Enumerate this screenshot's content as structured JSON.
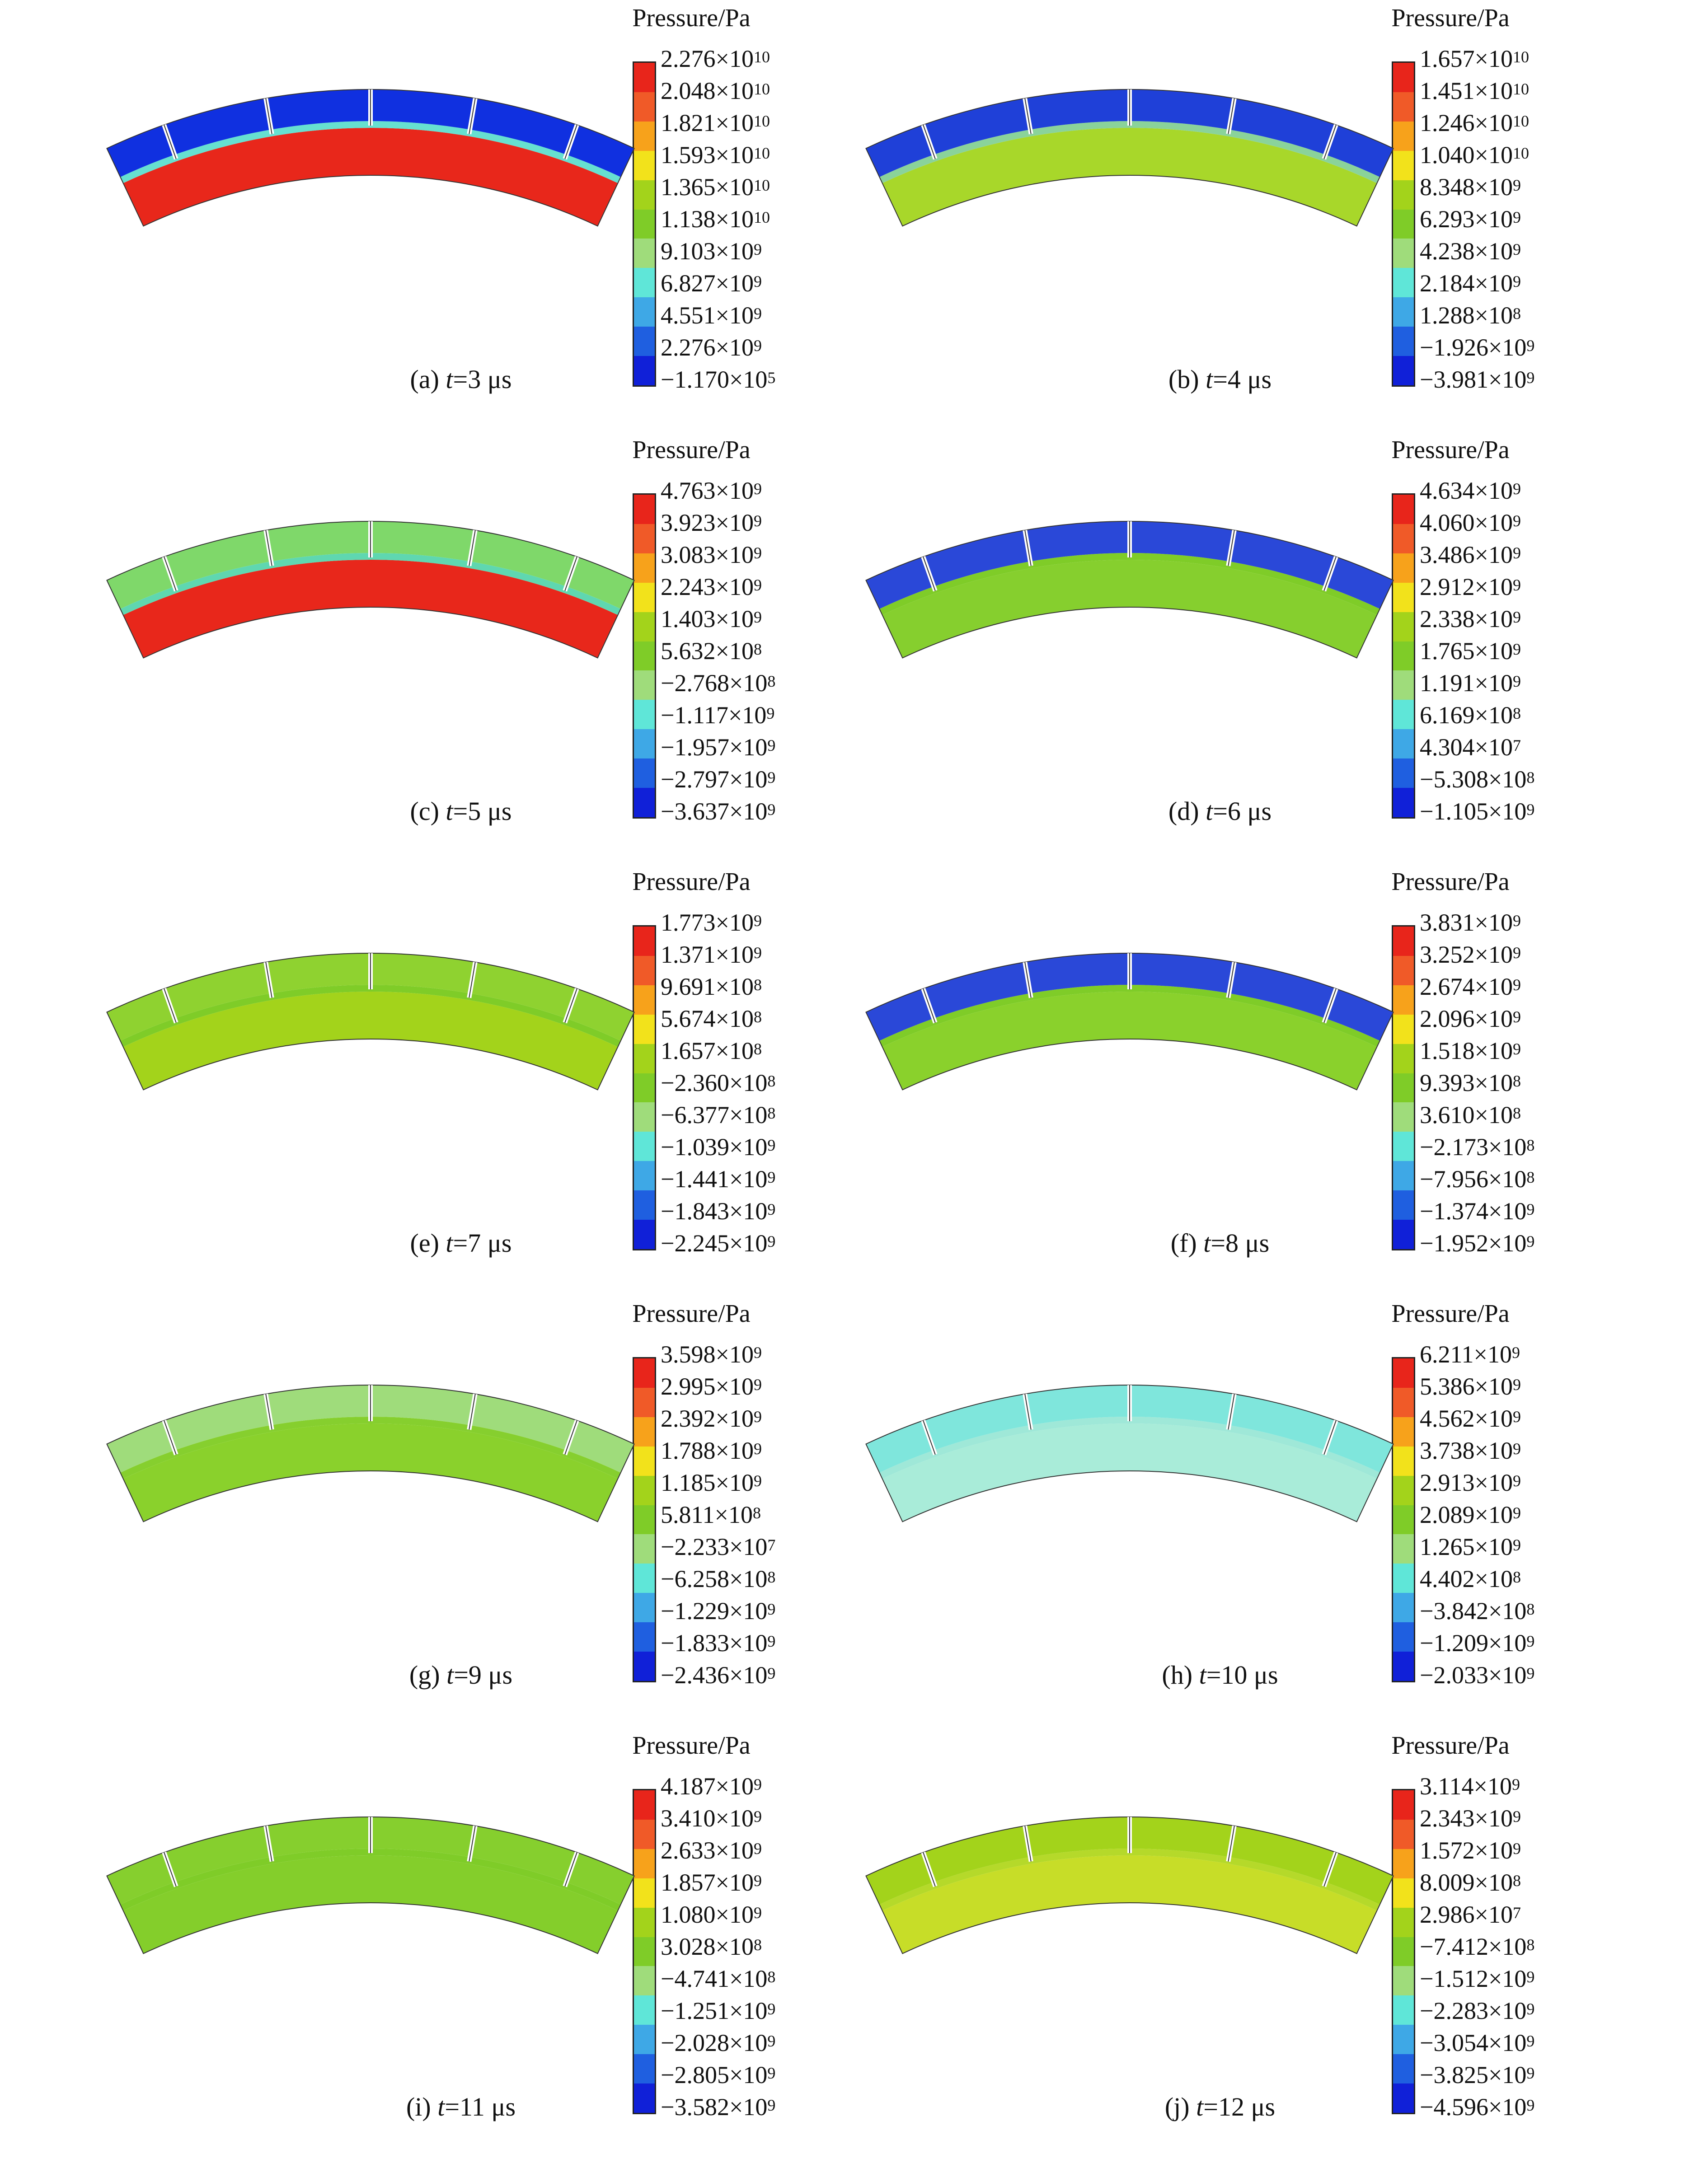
{
  "unit_label": "Pressure/Pa",
  "palette": [
    "#e8251b",
    "#f05a28",
    "#f7a21b",
    "#f2e21b",
    "#a3d31b",
    "#7fcc28",
    "#9fdc7b",
    "#5fe6d8",
    "#3ea8e6",
    "#1f5fe0",
    "#1020d8"
  ],
  "panels": [
    {
      "letter": "(a)",
      "t_value": "=3 μs",
      "ticks": [
        [
          "2.276",
          "10"
        ],
        [
          "2.048",
          "10"
        ],
        [
          "1.821",
          "10"
        ],
        [
          "1.593",
          "10"
        ],
        [
          "1.365",
          "10"
        ],
        [
          "1.138",
          "10"
        ],
        [
          "9.103",
          "9"
        ],
        [
          "6.827",
          "9"
        ],
        [
          "4.551",
          "9"
        ],
        [
          "2.276",
          "9"
        ],
        [
          "−1.170",
          "5"
        ]
      ],
      "arc": {
        "outer": "#1030e0",
        "band": "#66e0d0",
        "inner": "#e8271b"
      }
    },
    {
      "letter": "(b)",
      "t_value": "=4 μs",
      "ticks": [
        [
          "1.657",
          "10"
        ],
        [
          "1.451",
          "10"
        ],
        [
          "1.246",
          "10"
        ],
        [
          "1.040",
          "10"
        ],
        [
          "8.348",
          "9"
        ],
        [
          "6.293",
          "9"
        ],
        [
          "4.238",
          "9"
        ],
        [
          "2.184",
          "9"
        ],
        [
          "1.288",
          "8"
        ],
        [
          "−1.926",
          "9"
        ],
        [
          "−3.981",
          "9"
        ]
      ],
      "arc": {
        "outer": "#1f40d8",
        "band": "#8ad39a",
        "inner": "#a8d72a"
      }
    },
    {
      "letter": "(c)",
      "t_value": "=5 μs",
      "ticks": [
        [
          "4.763",
          "9"
        ],
        [
          "3.923",
          "9"
        ],
        [
          "3.083",
          "9"
        ],
        [
          "2.243",
          "9"
        ],
        [
          "1.403",
          "9"
        ],
        [
          "5.632",
          "8"
        ],
        [
          "−2.768",
          "8"
        ],
        [
          "−1.117",
          "9"
        ],
        [
          "−1.957",
          "9"
        ],
        [
          "−2.797",
          "9"
        ],
        [
          "−3.637",
          "9"
        ]
      ],
      "arc": {
        "outer": "#7fd86a",
        "band": "#5fd7b0",
        "inner": "#e8271b"
      }
    },
    {
      "letter": "(d)",
      "t_value": "=6 μs",
      "ticks": [
        [
          "4.634",
          "9"
        ],
        [
          "4.060",
          "9"
        ],
        [
          "3.486",
          "9"
        ],
        [
          "2.912",
          "9"
        ],
        [
          "2.338",
          "9"
        ],
        [
          "1.765",
          "9"
        ],
        [
          "1.191",
          "9"
        ],
        [
          "6.169",
          "8"
        ],
        [
          "4.304",
          "7"
        ],
        [
          "−5.308",
          "8"
        ],
        [
          "−1.105",
          "9"
        ]
      ],
      "arc": {
        "outer": "#2a48d8",
        "band": "#7fcc28",
        "inner": "#86cf2e"
      }
    },
    {
      "letter": "(e)",
      "t_value": "=7 μs",
      "ticks": [
        [
          "1.773",
          "9"
        ],
        [
          "1.371",
          "9"
        ],
        [
          "9.691",
          "8"
        ],
        [
          "5.674",
          "8"
        ],
        [
          "1.657",
          "8"
        ],
        [
          "−2.360",
          "8"
        ],
        [
          "−6.377",
          "8"
        ],
        [
          "−1.039",
          "9"
        ],
        [
          "−1.441",
          "9"
        ],
        [
          "−1.843",
          "9"
        ],
        [
          "−2.245",
          "9"
        ]
      ],
      "arc": {
        "outer": "#8fd230",
        "band": "#7fcc28",
        "inner": "#a3d31b"
      }
    },
    {
      "letter": "(f)",
      "t_value": "=8 μs",
      "ticks": [
        [
          "3.831",
          "9"
        ],
        [
          "3.252",
          "9"
        ],
        [
          "2.674",
          "9"
        ],
        [
          "2.096",
          "9"
        ],
        [
          "1.518",
          "9"
        ],
        [
          "9.393",
          "8"
        ],
        [
          "3.610",
          "8"
        ],
        [
          "−2.173",
          "8"
        ],
        [
          "−7.956",
          "8"
        ],
        [
          "−1.374",
          "9"
        ],
        [
          "−1.952",
          "9"
        ]
      ],
      "arc": {
        "outer": "#2a48d8",
        "band": "#7fcc28",
        "inner": "#8ad12c"
      }
    },
    {
      "letter": "(g)",
      "t_value": "=9 μs",
      "ticks": [
        [
          "3.598",
          "9"
        ],
        [
          "2.995",
          "9"
        ],
        [
          "2.392",
          "9"
        ],
        [
          "1.788",
          "9"
        ],
        [
          "1.185",
          "9"
        ],
        [
          "5.811",
          "8"
        ],
        [
          "−2.233",
          "7"
        ],
        [
          "−6.258",
          "8"
        ],
        [
          "−1.229",
          "9"
        ],
        [
          "−1.833",
          "9"
        ],
        [
          "−2.436",
          "9"
        ]
      ],
      "arc": {
        "outer": "#9fdc7b",
        "band": "#86cf2e",
        "inner": "#8ad12c"
      }
    },
    {
      "letter": "(h)",
      "t_value": "=10 μs",
      "ticks": [
        [
          "6.211",
          "9"
        ],
        [
          "5.386",
          "9"
        ],
        [
          "4.562",
          "9"
        ],
        [
          "3.738",
          "9"
        ],
        [
          "2.913",
          "9"
        ],
        [
          "2.089",
          "9"
        ],
        [
          "1.265",
          "9"
        ],
        [
          "4.402",
          "8"
        ],
        [
          "−3.842",
          "8"
        ],
        [
          "−1.209",
          "9"
        ],
        [
          "−2.033",
          "9"
        ]
      ],
      "arc": {
        "outer": "#7fe6dc",
        "band": "#9fe8d8",
        "inner": "#a9ecd9"
      }
    },
    {
      "letter": "(i)",
      "t_value": "=11 μs",
      "ticks": [
        [
          "4.187",
          "9"
        ],
        [
          "3.410",
          "9"
        ],
        [
          "2.633",
          "9"
        ],
        [
          "1.857",
          "9"
        ],
        [
          "1.080",
          "9"
        ],
        [
          "3.028",
          "8"
        ],
        [
          "−4.741",
          "8"
        ],
        [
          "−1.251",
          "9"
        ],
        [
          "−2.028",
          "9"
        ],
        [
          "−2.805",
          "9"
        ],
        [
          "−3.582",
          "9"
        ]
      ],
      "arc": {
        "outer": "#86cf2e",
        "band": "#7fcc28",
        "inner": "#84ce2b"
      }
    },
    {
      "letter": "(j)",
      "t_value": "=12 μs",
      "ticks": [
        [
          "3.114",
          "9"
        ],
        [
          "2.343",
          "9"
        ],
        [
          "1.572",
          "9"
        ],
        [
          "8.009",
          "8"
        ],
        [
          "2.986",
          "7"
        ],
        [
          "−7.412",
          "8"
        ],
        [
          "−1.512",
          "9"
        ],
        [
          "−2.283",
          "9"
        ],
        [
          "−3.054",
          "9"
        ],
        [
          "−3.825",
          "9"
        ],
        [
          "−4.596",
          "9"
        ]
      ],
      "arc": {
        "outer": "#a3d31b",
        "band": "#b5d92a",
        "inner": "#c7dd28"
      }
    }
  ]
}
